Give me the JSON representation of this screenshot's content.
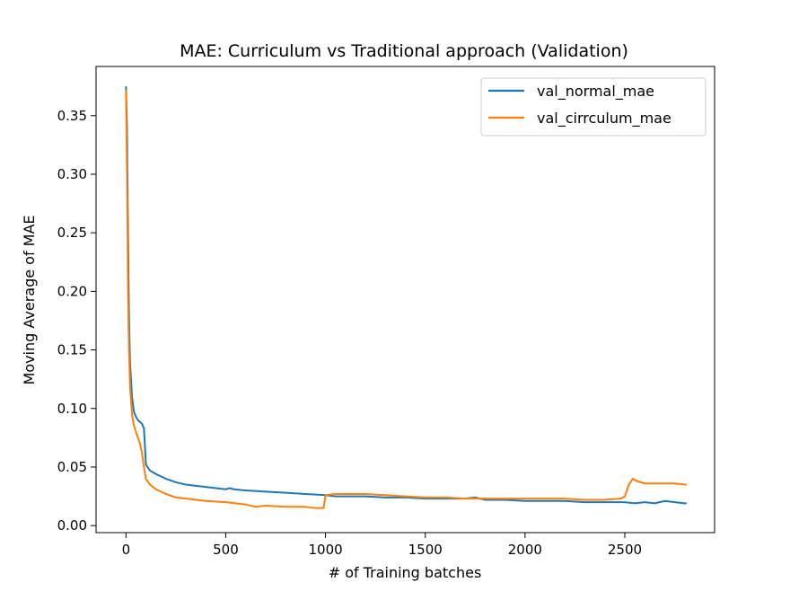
{
  "chart_data": {
    "type": "line",
    "title": "MAE: Curriculum vs Traditional approach (Validation)",
    "xlabel": "# of Training batches",
    "ylabel": "Moving Average of MAE",
    "xlim": [
      -150,
      2950
    ],
    "ylim": [
      -0.006,
      0.392
    ],
    "xticks": [
      0,
      500,
      1000,
      1500,
      2000,
      2500
    ],
    "xtick_labels": [
      "0",
      "500",
      "1000",
      "1500",
      "2000",
      "2500"
    ],
    "yticks": [
      0.0,
      0.05,
      0.1,
      0.15,
      0.2,
      0.25,
      0.3,
      0.35
    ],
    "ytick_labels": [
      "0.00",
      "0.05",
      "0.10",
      "0.15",
      "0.20",
      "0.25",
      "0.30",
      "0.35"
    ],
    "grid": false,
    "legend_position": "top-right",
    "series": [
      {
        "name": "val_normal_mae",
        "color": "#1f77b4",
        "x": [
          0,
          5,
          10,
          15,
          20,
          30,
          40,
          50,
          60,
          80,
          90,
          100,
          120,
          150,
          200,
          250,
          300,
          350,
          400,
          450,
          500,
          520,
          540,
          600,
          700,
          800,
          900,
          1000,
          1050,
          1100,
          1200,
          1300,
          1400,
          1500,
          1600,
          1700,
          1750,
          1800,
          1900,
          2000,
          2100,
          2200,
          2300,
          2400,
          2500,
          2550,
          2600,
          2650,
          2700,
          2750,
          2800,
          2810
        ],
        "y": [
          0.375,
          0.34,
          0.25,
          0.18,
          0.14,
          0.11,
          0.097,
          0.093,
          0.09,
          0.087,
          0.083,
          0.052,
          0.047,
          0.044,
          0.04,
          0.037,
          0.035,
          0.034,
          0.033,
          0.032,
          0.031,
          0.032,
          0.031,
          0.03,
          0.029,
          0.028,
          0.027,
          0.026,
          0.025,
          0.025,
          0.025,
          0.024,
          0.024,
          0.023,
          0.023,
          0.023,
          0.024,
          0.022,
          0.022,
          0.021,
          0.021,
          0.021,
          0.02,
          0.02,
          0.02,
          0.019,
          0.02,
          0.019,
          0.021,
          0.02,
          0.019,
          0.019
        ]
      },
      {
        "name": "val_cirrculum_mae",
        "color": "#ff7f0e",
        "x": [
          0,
          5,
          10,
          15,
          20,
          30,
          40,
          50,
          60,
          70,
          80,
          90,
          100,
          120,
          150,
          200,
          250,
          300,
          400,
          500,
          600,
          650,
          700,
          800,
          900,
          950,
          990,
          1000,
          1050,
          1100,
          1200,
          1300,
          1400,
          1500,
          1600,
          1700,
          1800,
          1900,
          2000,
          2100,
          2200,
          2300,
          2400,
          2480,
          2500,
          2520,
          2540,
          2560,
          2600,
          2650,
          2700,
          2750,
          2800,
          2810
        ],
        "y": [
          0.372,
          0.3,
          0.2,
          0.15,
          0.12,
          0.095,
          0.085,
          0.08,
          0.075,
          0.07,
          0.062,
          0.05,
          0.04,
          0.035,
          0.031,
          0.027,
          0.024,
          0.023,
          0.021,
          0.02,
          0.018,
          0.016,
          0.017,
          0.016,
          0.016,
          0.015,
          0.015,
          0.026,
          0.027,
          0.027,
          0.027,
          0.026,
          0.025,
          0.024,
          0.024,
          0.023,
          0.023,
          0.023,
          0.023,
          0.023,
          0.023,
          0.022,
          0.022,
          0.023,
          0.025,
          0.035,
          0.04,
          0.038,
          0.036,
          0.036,
          0.036,
          0.036,
          0.035,
          0.035
        ]
      }
    ]
  }
}
